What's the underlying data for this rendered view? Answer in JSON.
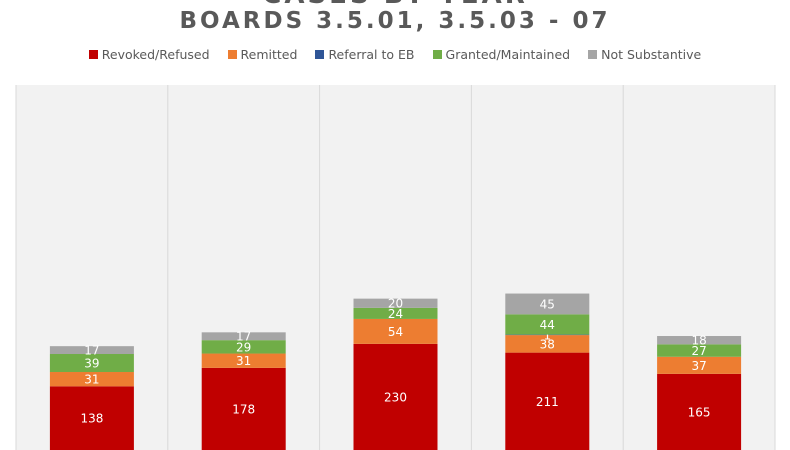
{
  "chart_data": {
    "type": "bar",
    "stacked": true,
    "title": "BOARDS 3.5.01, 3.5.03 - 07",
    "title_top_partial": "CASES BY YEAR",
    "legend_position": "top",
    "grid": false,
    "categories": [
      "",
      "",
      "",
      "",
      ""
    ],
    "series": [
      {
        "name": "Revoked/Refused",
        "color": "#C00000",
        "values": [
          138,
          178,
          230,
          211,
          165
        ]
      },
      {
        "name": "Remitted",
        "color": "#ED7D31",
        "values": [
          31,
          31,
          54,
          38,
          37
        ]
      },
      {
        "name": "Referral to EB",
        "color": "#2F5597",
        "values": [
          0,
          0,
          0,
          1,
          0
        ]
      },
      {
        "name": "Granted/Maintained",
        "color": "#70AD47",
        "values": [
          39,
          29,
          24,
          44,
          27
        ]
      },
      {
        "name": "Not Substantive",
        "color": "#A5A5A5",
        "values": [
          17,
          17,
          20,
          45,
          18
        ]
      }
    ]
  },
  "colors": {
    "plot_background": "#F2F2F2",
    "separator": "#D9D9D9",
    "label_text": "#FFFFFF",
    "title_text": "#595959"
  }
}
